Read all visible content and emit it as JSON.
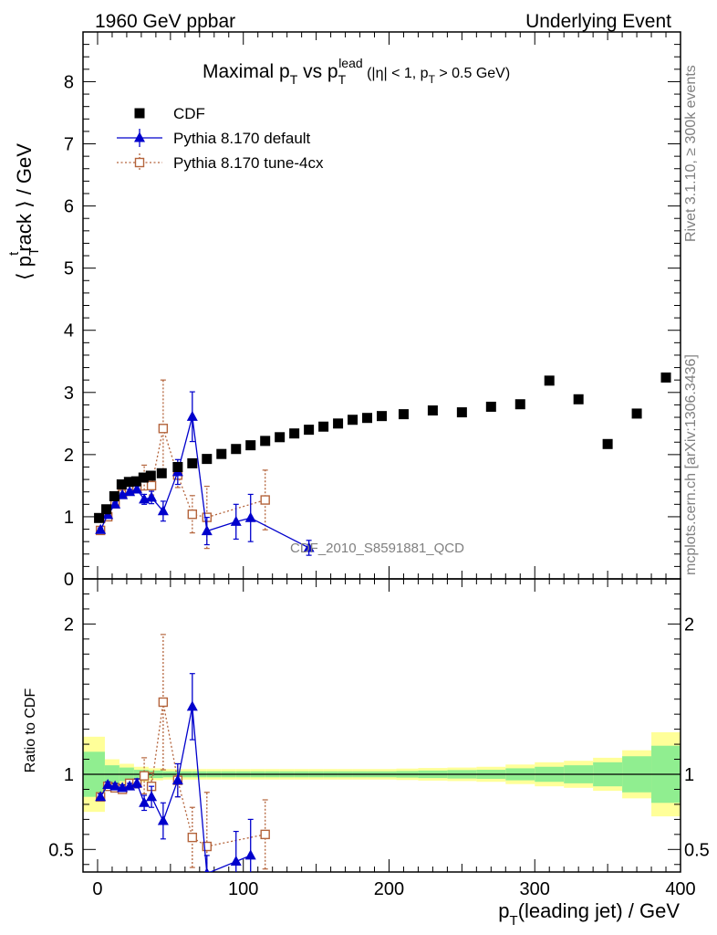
{
  "header": {
    "left": "1960 GeV ppbar",
    "right": "Underlying Event"
  },
  "side_text": {
    "rivet": "Rivet 3.1.10, ≥ 300k events",
    "mcplots": "mcplots.cern.ch [arXiv:1306.3436]"
  },
  "analysis_label": "CDF_2010_S8591881_QCD",
  "chart_data": [
    {
      "type": "scatter",
      "panel": "main",
      "title": "Maximal p_T vs p_T^lead (|η| < 1, p_T > 0.5 GeV)",
      "ylabel": "⟨ p_T^track ⟩ / GeV",
      "xlim": [
        -10,
        400
      ],
      "ylim": [
        0,
        8.8
      ],
      "y_ticks": [
        0,
        1,
        2,
        3,
        4,
        5,
        6,
        7,
        8
      ],
      "legend_position": "top-left",
      "series": [
        {
          "name": "CDF",
          "color": "#000000",
          "marker": "square",
          "points": [
            [
              1.0,
              0.98
            ],
            [
              6.0,
              1.12
            ],
            [
              11.5,
              1.33
            ],
            [
              16.5,
              1.52
            ],
            [
              21.5,
              1.56
            ],
            [
              26.5,
              1.57
            ],
            [
              31.5,
              1.63
            ],
            [
              36.5,
              1.66
            ],
            [
              44.0,
              1.7
            ],
            [
              55.0,
              1.8
            ],
            [
              65.0,
              1.86
            ],
            [
              75.0,
              1.93
            ],
            [
              85.0,
              2.01
            ],
            [
              95.0,
              2.09
            ],
            [
              105.0,
              2.15
            ],
            [
              115.0,
              2.22
            ],
            [
              125.0,
              2.28
            ],
            [
              135.0,
              2.34
            ],
            [
              145.0,
              2.4
            ],
            [
              155.0,
              2.45
            ],
            [
              165.0,
              2.5
            ],
            [
              175.0,
              2.56
            ],
            [
              185.0,
              2.59
            ],
            [
              195.0,
              2.62
            ],
            [
              210.0,
              2.65
            ],
            [
              230.0,
              2.71
            ],
            [
              250.0,
              2.68
            ],
            [
              270.0,
              2.77
            ],
            [
              290.0,
              2.81
            ],
            [
              310.0,
              3.19
            ],
            [
              330.0,
              2.89
            ],
            [
              350.0,
              2.17
            ],
            [
              370.0,
              2.66
            ],
            [
              390.0,
              3.24
            ]
          ]
        },
        {
          "name": "Pythia 8.170 default",
          "color": "#0000cc",
          "marker": "triangle",
          "line": "solid",
          "points": [
            [
              2.0,
              0.79,
              0.03
            ],
            [
              7.0,
              1.03,
              0.03
            ],
            [
              12.0,
              1.2,
              0.03
            ],
            [
              17.0,
              1.35,
              0.03
            ],
            [
              22.0,
              1.4,
              0.04
            ],
            [
              27.0,
              1.44,
              0.05
            ],
            [
              32.0,
              1.28,
              0.08
            ],
            [
              37.0,
              1.31,
              0.1
            ],
            [
              45.0,
              1.09,
              0.16
            ],
            [
              55.0,
              1.72,
              0.2
            ],
            [
              65.0,
              2.61,
              0.4
            ],
            [
              75.0,
              0.77,
              0.22
            ],
            [
              95.0,
              0.92,
              0.28
            ],
            [
              105.0,
              0.98,
              0.38
            ],
            [
              145.0,
              0.5,
              0.12
            ]
          ]
        },
        {
          "name": "Pythia 8.170 tune-4cx",
          "color": "#b4643c",
          "marker": "open-square",
          "line": "dotted",
          "points": [
            [
              2.0,
              0.78,
              0.03
            ],
            [
              7.0,
              1.0,
              0.03
            ],
            [
              12.0,
              1.21,
              0.03
            ],
            [
              17.0,
              1.36,
              0.03
            ],
            [
              22.0,
              1.43,
              0.04
            ],
            [
              27.0,
              1.46,
              0.05
            ],
            [
              32.0,
              1.63,
              0.2
            ],
            [
              37.0,
              1.5,
              0.15
            ],
            [
              45.0,
              2.42,
              0.78
            ],
            [
              55.0,
              1.67,
              0.2
            ],
            [
              65.0,
              1.04,
              0.3
            ],
            [
              75.0,
              0.99,
              0.5
            ],
            [
              115.0,
              1.27,
              0.48
            ]
          ]
        }
      ]
    },
    {
      "type": "scatter",
      "panel": "ratio",
      "ylabel": "Ratio to CDF",
      "xlabel": "p_T(leading jet) / GeV",
      "xlim": [
        -10,
        400
      ],
      "ylim": [
        0.35,
        2.3
      ],
      "x_ticks": [
        0,
        100,
        200,
        300,
        400
      ],
      "y_ticks": [
        0.5,
        1,
        2
      ],
      "bands": {
        "x_edges": [
          -10,
          5,
          15,
          25,
          35,
          45,
          55,
          65,
          75,
          85,
          95,
          105,
          115,
          125,
          135,
          145,
          155,
          165,
          175,
          185,
          195,
          205,
          220,
          240,
          260,
          280,
          300,
          320,
          340,
          360,
          380,
          400
        ],
        "stat": [
          0.15,
          0.06,
          0.045,
          0.03,
          0.025,
          0.02,
          0.02,
          0.02,
          0.02,
          0.02,
          0.02,
          0.02,
          0.02,
          0.02,
          0.02,
          0.02,
          0.02,
          0.02,
          0.02,
          0.02,
          0.02,
          0.022,
          0.025,
          0.028,
          0.03,
          0.04,
          0.05,
          0.06,
          0.08,
          0.12,
          0.19
        ],
        "total": [
          0.25,
          0.1,
          0.07,
          0.05,
          0.04,
          0.035,
          0.035,
          0.035,
          0.035,
          0.035,
          0.035,
          0.035,
          0.035,
          0.035,
          0.035,
          0.035,
          0.035,
          0.035,
          0.035,
          0.035,
          0.035,
          0.038,
          0.042,
          0.045,
          0.05,
          0.065,
          0.08,
          0.09,
          0.11,
          0.16,
          0.28
        ],
        "stat_color": "#90ee90",
        "total_color": "#ffff99"
      },
      "series": [
        {
          "name": "Pythia 8.170 default",
          "color": "#0000cc",
          "marker": "triangle",
          "line": "solid",
          "points": [
            [
              2.0,
              0.85,
              0.02
            ],
            [
              7.0,
              0.93,
              0.02
            ],
            [
              12.0,
              0.92,
              0.02
            ],
            [
              17.0,
              0.91,
              0.02
            ],
            [
              22.0,
              0.92,
              0.02
            ],
            [
              27.0,
              0.94,
              0.03
            ],
            [
              32.0,
              0.81,
              0.05
            ],
            [
              37.0,
              0.85,
              0.07
            ],
            [
              45.0,
              0.69,
              0.12
            ],
            [
              55.0,
              0.96,
              0.11
            ],
            [
              65.0,
              1.45,
              0.22
            ],
            [
              75.0,
              0.34,
              0.12
            ],
            [
              95.0,
              0.42,
              0.2
            ],
            [
              105.0,
              0.46,
              0.24
            ]
          ]
        },
        {
          "name": "Pythia 8.170 tune-4cx",
          "color": "#b4643c",
          "marker": "open-square",
          "line": "dotted",
          "points": [
            [
              2.0,
              0.85,
              0.02
            ],
            [
              7.0,
              0.92,
              0.02
            ],
            [
              12.0,
              0.91,
              0.02
            ],
            [
              17.0,
              0.9,
              0.02
            ],
            [
              22.0,
              0.94,
              0.02
            ],
            [
              27.0,
              0.94,
              0.03
            ],
            [
              32.0,
              0.99,
              0.12
            ],
            [
              37.0,
              0.92,
              0.09
            ],
            [
              45.0,
              1.48,
              0.45
            ],
            [
              55.0,
              0.96,
              0.11
            ],
            [
              65.0,
              0.58,
              0.2
            ],
            [
              75.0,
              0.52,
              0.36
            ],
            [
              115.0,
              0.6,
              0.23
            ]
          ]
        }
      ]
    }
  ]
}
